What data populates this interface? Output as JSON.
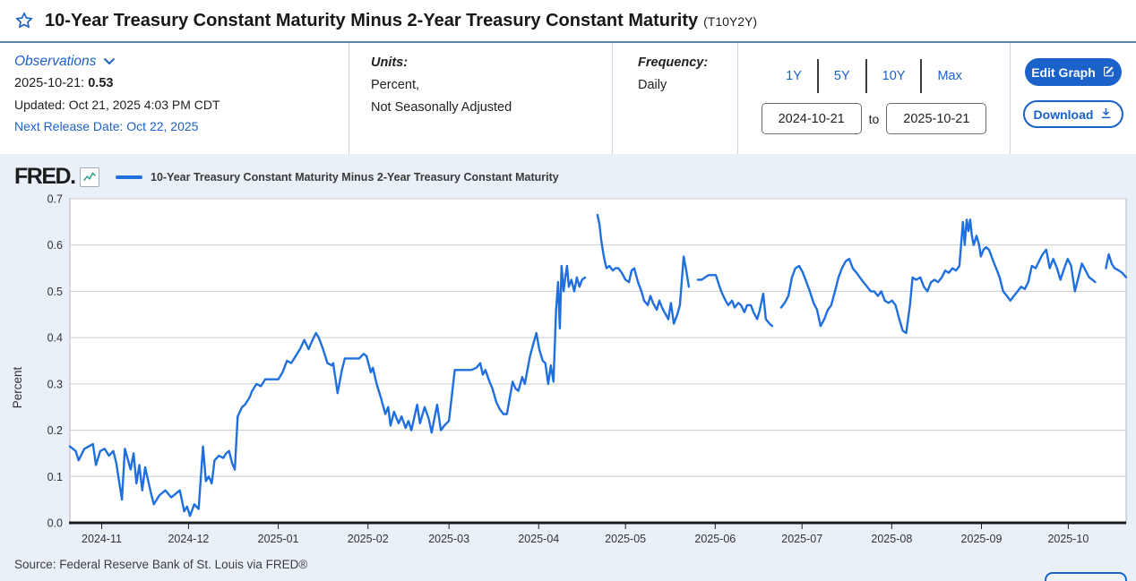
{
  "accent_color": "#1a61c9",
  "header": {
    "title": "10-Year Treasury Constant Maturity Minus 2-Year Treasury Constant Maturity",
    "series_id": "(T10Y2Y)"
  },
  "info": {
    "observations_label": "Observations",
    "latest_date": "2025-10-21:",
    "latest_value": "0.53",
    "updated": "Updated: Oct 21, 2025 4:03 PM CDT",
    "next_release": "Next Release Date: Oct 22, 2025",
    "units_label": "Units:",
    "units_line1": "Percent,",
    "units_line2": "Not Seasonally Adjusted",
    "frequency_label": "Frequency:",
    "frequency_value": "Daily",
    "range_buttons": [
      "1Y",
      "5Y",
      "10Y",
      "Max"
    ],
    "date_from": "2024-10-21",
    "to_label": "to",
    "date_to": "2025-10-21",
    "edit_graph_label": "Edit Graph",
    "download_label": "Download"
  },
  "chart": {
    "brand": "FRED",
    "brand_suffix": ".",
    "source": "Source: Federal Reserve Bank of St. Louis via FRED®"
  },
  "chart_data": {
    "type": "line",
    "title": "10-Year Treasury Constant Maturity Minus 2-Year Treasury Constant Maturity",
    "ylabel": "Percent",
    "ylim": [
      0,
      0.7
    ],
    "yticks": [
      "0.0",
      "0.1",
      "0.2",
      "0.3",
      "0.4",
      "0.5",
      "0.6",
      "0.7"
    ],
    "x_start": "2024-10-21",
    "x_end": "2025-10-21",
    "x_span_days": 365,
    "xticks": [
      {
        "day": 11,
        "label": "2024-11"
      },
      {
        "day": 41,
        "label": "2024-12"
      },
      {
        "day": 72,
        "label": "2025-01"
      },
      {
        "day": 103,
        "label": "2025-02"
      },
      {
        "day": 131,
        "label": "2025-03"
      },
      {
        "day": 162,
        "label": "2025-04"
      },
      {
        "day": 192,
        "label": "2025-05"
      },
      {
        "day": 223,
        "label": "2025-06"
      },
      {
        "day": 253,
        "label": "2025-07"
      },
      {
        "day": 284,
        "label": "2025-08"
      },
      {
        "day": 315,
        "label": "2025-09"
      },
      {
        "day": 345,
        "label": "2025-10"
      }
    ],
    "grid": true,
    "legend_position": "top-left",
    "line_color": "#1f6fdf",
    "frequency": "Daily",
    "units": "Percent, Not Seasonally Adjusted",
    "last_observation": {
      "date": "2025-10-21",
      "value": 0.53
    },
    "segments": [
      [
        [
          0,
          0.165
        ],
        [
          2,
          0.155
        ],
        [
          3,
          0.135
        ],
        [
          5,
          0.16
        ],
        [
          8,
          0.17
        ],
        [
          9,
          0.125
        ],
        [
          10.5,
          0.155
        ],
        [
          12,
          0.16
        ],
        [
          13.5,
          0.145
        ],
        [
          15,
          0.155
        ],
        [
          16,
          0.13
        ],
        [
          18,
          0.05
        ],
        [
          19,
          0.16
        ],
        [
          21,
          0.115
        ],
        [
          22,
          0.15
        ],
        [
          23,
          0.085
        ],
        [
          24,
          0.125
        ],
        [
          25,
          0.07
        ],
        [
          26,
          0.12
        ],
        [
          28,
          0.065
        ],
        [
          29,
          0.04
        ],
        [
          31,
          0.06
        ],
        [
          33,
          0.07
        ],
        [
          35,
          0.055
        ],
        [
          37,
          0.065
        ],
        [
          38,
          0.07
        ],
        [
          39.5,
          0.025
        ],
        [
          40.5,
          0.035
        ],
        [
          41.5,
          0.015
        ],
        [
          43,
          0.04
        ],
        [
          44.5,
          0.03
        ],
        [
          46,
          0.165
        ],
        [
          47,
          0.09
        ],
        [
          48,
          0.1
        ],
        [
          49,
          0.085
        ],
        [
          50,
          0.135
        ],
        [
          51.5,
          0.145
        ],
        [
          53,
          0.14
        ],
        [
          54,
          0.15
        ],
        [
          55,
          0.155
        ],
        [
          56,
          0.13
        ],
        [
          57,
          0.115
        ],
        [
          58,
          0.23
        ],
        [
          59.5,
          0.25
        ],
        [
          60.5,
          0.255
        ],
        [
          62,
          0.27
        ],
        [
          63,
          0.285
        ],
        [
          64.5,
          0.3
        ],
        [
          66,
          0.295
        ],
        [
          67.5,
          0.31
        ],
        [
          69,
          0.31
        ],
        [
          70.5,
          0.31
        ],
        [
          72,
          0.31
        ],
        [
          73.5,
          0.325
        ],
        [
          75,
          0.35
        ],
        [
          76.5,
          0.345
        ],
        [
          78,
          0.36
        ],
        [
          79.5,
          0.375
        ],
        [
          81,
          0.395
        ],
        [
          82.5,
          0.375
        ],
        [
          83.5,
          0.39
        ],
        [
          85,
          0.41
        ],
        [
          86,
          0.4
        ],
        [
          87.5,
          0.375
        ],
        [
          89,
          0.345
        ],
        [
          90.5,
          0.34
        ],
        [
          91,
          0.345
        ],
        [
          92.5,
          0.28
        ],
        [
          94,
          0.33
        ],
        [
          95,
          0.355
        ],
        [
          97,
          0.355
        ],
        [
          98.5,
          0.355
        ],
        [
          100,
          0.355
        ],
        [
          101.5,
          0.365
        ],
        [
          102.5,
          0.36
        ],
        [
          104,
          0.325
        ],
        [
          104.7,
          0.335
        ],
        [
          106,
          0.3
        ],
        [
          107.5,
          0.27
        ],
        [
          109,
          0.235
        ],
        [
          110,
          0.25
        ],
        [
          110.8,
          0.21
        ],
        [
          112,
          0.24
        ],
        [
          113.6,
          0.215
        ],
        [
          114.6,
          0.23
        ],
        [
          116,
          0.205
        ],
        [
          117,
          0.22
        ],
        [
          118,
          0.2
        ],
        [
          120,
          0.255
        ],
        [
          121,
          0.215
        ],
        [
          122.6,
          0.25
        ],
        [
          124,
          0.225
        ],
        [
          125,
          0.195
        ],
        [
          126.9,
          0.255
        ],
        [
          128.2,
          0.2
        ],
        [
          129.4,
          0.21
        ],
        [
          131,
          0.22
        ],
        [
          133,
          0.33
        ],
        [
          135,
          0.33
        ],
        [
          137,
          0.33
        ],
        [
          138.7,
          0.33
        ],
        [
          140.5,
          0.335
        ],
        [
          141.8,
          0.345
        ],
        [
          142.7,
          0.32
        ],
        [
          143.6,
          0.33
        ],
        [
          145,
          0.305
        ],
        [
          146,
          0.29
        ],
        [
          147.4,
          0.26
        ],
        [
          148.6,
          0.245
        ],
        [
          149.8,
          0.235
        ],
        [
          151,
          0.235
        ],
        [
          153,
          0.305
        ],
        [
          154,
          0.29
        ],
        [
          155,
          0.285
        ],
        [
          156.3,
          0.315
        ],
        [
          157.2,
          0.3
        ],
        [
          159,
          0.36
        ],
        [
          160.3,
          0.39
        ],
        [
          161.2,
          0.41
        ],
        [
          162.2,
          0.375
        ],
        [
          163.4,
          0.35
        ],
        [
          164.3,
          0.345
        ],
        [
          165.3,
          0.3
        ],
        [
          166.2,
          0.34
        ],
        [
          167.1,
          0.305
        ],
        [
          168,
          0.46
        ],
        [
          168.7,
          0.52
        ],
        [
          169.3,
          0.42
        ],
        [
          169.9,
          0.555
        ],
        [
          170.6,
          0.5
        ],
        [
          171.2,
          0.53
        ],
        [
          171.8,
          0.555
        ],
        [
          172.4,
          0.51
        ],
        [
          173.3,
          0.525
        ],
        [
          174.3,
          0.5
        ],
        [
          175.2,
          0.53
        ],
        [
          176.1,
          0.51
        ],
        [
          177,
          0.525
        ],
        [
          178,
          0.53
        ]
      ],
      [
        [
          182.3,
          0.665
        ],
        [
          183,
          0.645
        ],
        [
          183.6,
          0.61
        ],
        [
          184.5,
          0.575
        ],
        [
          185.4,
          0.55
        ],
        [
          186.4,
          0.555
        ],
        [
          187.6,
          0.545
        ],
        [
          188.5,
          0.55
        ],
        [
          189.5,
          0.55
        ],
        [
          190.7,
          0.54
        ],
        [
          192,
          0.525
        ],
        [
          193.2,
          0.52
        ],
        [
          194.1,
          0.545
        ],
        [
          195,
          0.55
        ],
        [
          196.3,
          0.52
        ],
        [
          197.5,
          0.5
        ],
        [
          198.4,
          0.48
        ],
        [
          199.7,
          0.47
        ],
        [
          200.6,
          0.49
        ],
        [
          201.5,
          0.475
        ],
        [
          202.8,
          0.46
        ],
        [
          203.7,
          0.48
        ],
        [
          204.6,
          0.465
        ],
        [
          205.9,
          0.45
        ],
        [
          206.8,
          0.44
        ],
        [
          207.7,
          0.475
        ],
        [
          208.7,
          0.43
        ],
        [
          209.9,
          0.45
        ],
        [
          210.8,
          0.47
        ],
        [
          212.1,
          0.575
        ],
        [
          213,
          0.545
        ],
        [
          213.9,
          0.51
        ]
      ],
      [
        [
          217,
          0.525
        ],
        [
          218.3,
          0.525
        ],
        [
          219.5,
          0.53
        ],
        [
          220.7,
          0.535
        ],
        [
          222,
          0.535
        ],
        [
          223.2,
          0.535
        ],
        [
          224.5,
          0.51
        ],
        [
          225.4,
          0.495
        ],
        [
          226.6,
          0.48
        ],
        [
          227.5,
          0.47
        ],
        [
          228.8,
          0.48
        ],
        [
          229.7,
          0.465
        ],
        [
          231,
          0.475
        ],
        [
          231.9,
          0.47
        ],
        [
          233.1,
          0.455
        ],
        [
          234,
          0.47
        ],
        [
          235.3,
          0.47
        ],
        [
          236.2,
          0.455
        ],
        [
          237.5,
          0.44
        ],
        [
          238.4,
          0.46
        ],
        [
          239.6,
          0.495
        ],
        [
          240.5,
          0.44
        ],
        [
          241.8,
          0.43
        ],
        [
          242.7,
          0.425
        ]
      ],
      [
        [
          245.8,
          0.465
        ],
        [
          247,
          0.475
        ],
        [
          248.3,
          0.49
        ],
        [
          249.5,
          0.53
        ],
        [
          250.7,
          0.55
        ],
        [
          252,
          0.555
        ],
        [
          253.3,
          0.54
        ],
        [
          254.5,
          0.52
        ],
        [
          255.7,
          0.5
        ],
        [
          257,
          0.475
        ],
        [
          258.2,
          0.46
        ],
        [
          259.4,
          0.425
        ],
        [
          260.7,
          0.44
        ],
        [
          261.9,
          0.46
        ],
        [
          263.1,
          0.47
        ],
        [
          264.4,
          0.5
        ],
        [
          265.6,
          0.53
        ],
        [
          266.8,
          0.55
        ],
        [
          268.1,
          0.565
        ],
        [
          269.3,
          0.57
        ],
        [
          270.5,
          0.55
        ],
        [
          271.8,
          0.54
        ],
        [
          273,
          0.53
        ],
        [
          274.2,
          0.52
        ],
        [
          275.5,
          0.51
        ],
        [
          276.7,
          0.5
        ],
        [
          277.9,
          0.5
        ],
        [
          279.2,
          0.49
        ],
        [
          280.4,
          0.5
        ],
        [
          281.6,
          0.48
        ],
        [
          282.9,
          0.475
        ],
        [
          284.1,
          0.48
        ],
        [
          285.3,
          0.47
        ],
        [
          286.6,
          0.44
        ],
        [
          287.8,
          0.415
        ],
        [
          289,
          0.41
        ],
        [
          290.3,
          0.47
        ],
        [
          291.2,
          0.53
        ],
        [
          292.4,
          0.525
        ],
        [
          293.9,
          0.53
        ],
        [
          295.1,
          0.51
        ],
        [
          296.3,
          0.5
        ],
        [
          297.6,
          0.52
        ],
        [
          298.8,
          0.525
        ],
        [
          300,
          0.52
        ],
        [
          301.3,
          0.53
        ],
        [
          302.5,
          0.545
        ],
        [
          303.7,
          0.54
        ],
        [
          305,
          0.55
        ],
        [
          306.2,
          0.545
        ],
        [
          307.4,
          0.555
        ],
        [
          308.6,
          0.65
        ],
        [
          309.2,
          0.6
        ],
        [
          309.9,
          0.655
        ],
        [
          310.5,
          0.63
        ],
        [
          311.1,
          0.655
        ],
        [
          311.7,
          0.62
        ],
        [
          312.3,
          0.6
        ],
        [
          313.3,
          0.62
        ],
        [
          314.2,
          0.6
        ],
        [
          314.8,
          0.575
        ],
        [
          315.7,
          0.59
        ],
        [
          316.6,
          0.595
        ],
        [
          317.6,
          0.59
        ],
        [
          318.5,
          0.575
        ],
        [
          319.4,
          0.56
        ],
        [
          320.4,
          0.545
        ],
        [
          321.3,
          0.53
        ],
        [
          322.5,
          0.5
        ],
        [
          323.8,
          0.49
        ],
        [
          325,
          0.48
        ],
        [
          326.2,
          0.49
        ],
        [
          327.5,
          0.5
        ],
        [
          328.7,
          0.51
        ],
        [
          330,
          0.505
        ],
        [
          331.2,
          0.52
        ],
        [
          332.4,
          0.555
        ],
        [
          333.7,
          0.55
        ],
        [
          334.9,
          0.565
        ],
        [
          336.1,
          0.58
        ],
        [
          337.4,
          0.59
        ],
        [
          338.6,
          0.55
        ],
        [
          339.8,
          0.57
        ],
        [
          341.1,
          0.55
        ],
        [
          342.3,
          0.525
        ],
        [
          343.6,
          0.55
        ],
        [
          344.8,
          0.57
        ],
        [
          346,
          0.555
        ],
        [
          347.3,
          0.5
        ],
        [
          348.5,
          0.53
        ],
        [
          349.7,
          0.56
        ],
        [
          351,
          0.545
        ],
        [
          352.2,
          0.53
        ],
        [
          353.4,
          0.525
        ],
        [
          354.3,
          0.52
        ]
      ],
      [
        [
          358,
          0.55
        ],
        [
          359,
          0.58
        ],
        [
          360,
          0.56
        ],
        [
          361,
          0.55
        ],
        [
          362.5,
          0.545
        ],
        [
          363.6,
          0.54
        ],
        [
          365,
          0.53
        ]
      ]
    ]
  }
}
